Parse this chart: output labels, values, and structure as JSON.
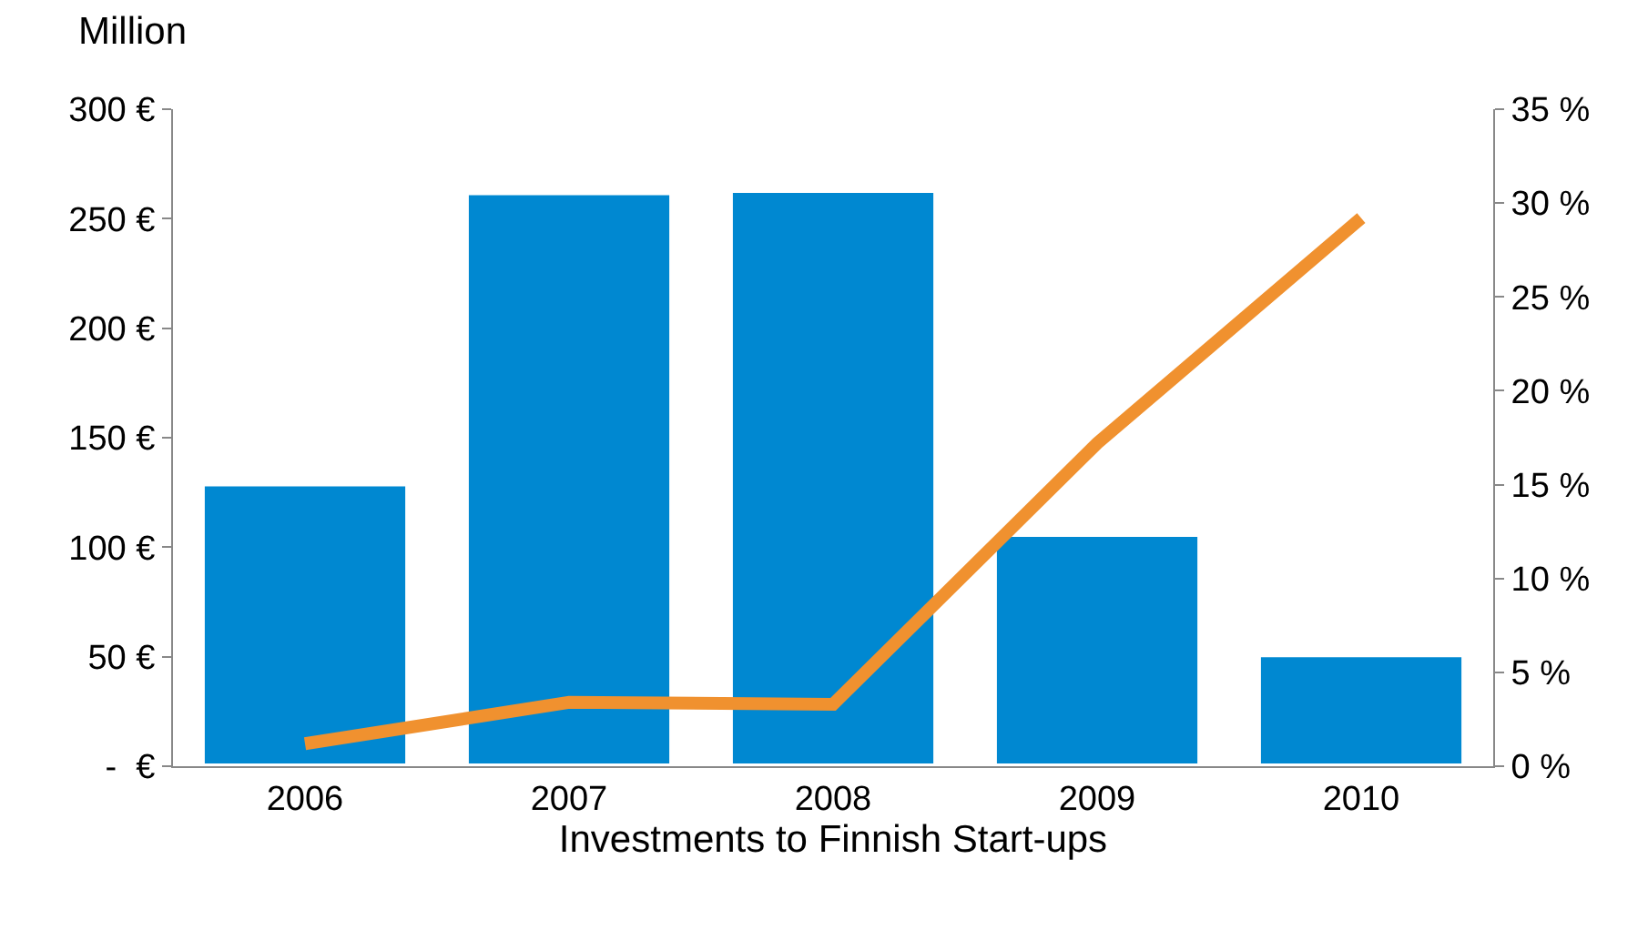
{
  "chart_data": {
    "type": "bar",
    "title": "Investments to Finnish Start-ups",
    "ylabel": "Million",
    "categories": [
      "2006",
      "2007",
      "2008",
      "2009",
      "2010"
    ],
    "series": [
      {
        "color": "#0088d1",
        "values": [
          129,
          262,
          263,
          106,
          51
        ]
      },
      {
        "type": "line",
        "axis": "y2",
        "color": "#f0912f",
        "values": [
          1.2,
          3.4,
          3.3,
          17.2,
          29.2
        ]
      }
    ],
    "ylim": [
      0,
      300
    ],
    "yticks": [
      {
        "value": 0,
        "label": "-  €"
      },
      {
        "value": 50,
        "label": "50 €"
      },
      {
        "value": 100,
        "label": "100 €"
      },
      {
        "value": 150,
        "label": "150 €"
      },
      {
        "value": 200,
        "label": "200 €"
      },
      {
        "value": 250,
        "label": "250 €"
      },
      {
        "value": 300,
        "label": "300 €"
      }
    ],
    "y2lim": [
      0,
      35
    ],
    "y2ticks": [
      {
        "value": 0,
        "label": "0 %"
      },
      {
        "value": 5,
        "label": "5 %"
      },
      {
        "value": 10,
        "label": "10 %"
      },
      {
        "value": 15,
        "label": "15 %"
      },
      {
        "value": 20,
        "label": "20 %"
      },
      {
        "value": 25,
        "label": "25 %"
      },
      {
        "value": 30,
        "label": "30 %"
      },
      {
        "value": 35,
        "label": "35 %"
      }
    ],
    "legend": false,
    "marker": "none",
    "line_style": "solid"
  }
}
